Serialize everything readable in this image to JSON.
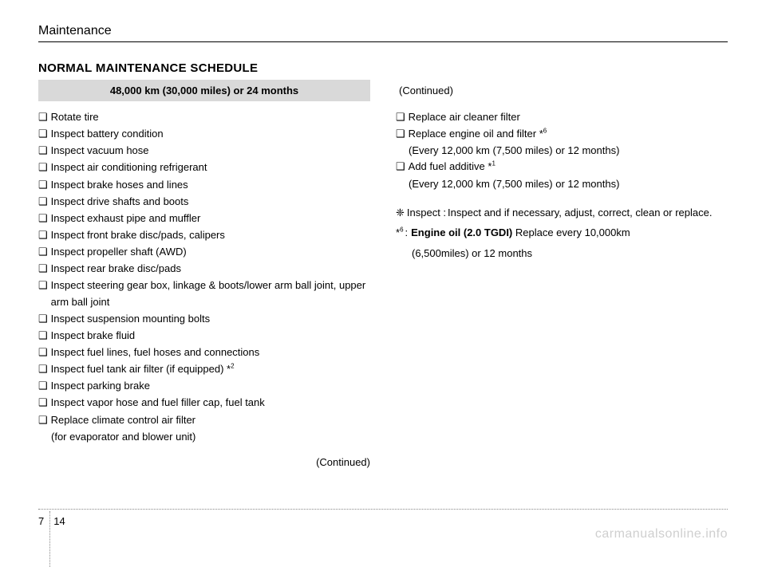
{
  "header": {
    "section": "Maintenance"
  },
  "heading": "NORMAL MAINTENANCE SCHEDULE",
  "left": {
    "interval": "48,000 km (30,000 miles) or 24 months",
    "items": [
      {
        "text": "Rotate tire"
      },
      {
        "text": "Inspect battery condition"
      },
      {
        "text": "Inspect vacuum hose"
      },
      {
        "text": "Inspect air conditioning refrigerant"
      },
      {
        "text": "Inspect brake hoses and lines"
      },
      {
        "text": "Inspect drive shafts and boots"
      },
      {
        "text": "Inspect exhaust pipe and muffler"
      },
      {
        "text": "Inspect front brake disc/pads, calipers"
      },
      {
        "text": "Inspect propeller shaft (AWD)"
      },
      {
        "text": "Inspect rear brake disc/pads"
      },
      {
        "text": "Inspect steering gear box, linkage & boots/lower arm ball joint, upper arm ball joint"
      },
      {
        "text": "Inspect suspension mounting bolts"
      },
      {
        "text": "Inspect brake fluid"
      },
      {
        "text": "Inspect fuel lines, fuel hoses and connections"
      },
      {
        "text": "Inspect fuel tank air filter (if equipped) *",
        "sup": "2"
      },
      {
        "text": "Inspect parking brake"
      },
      {
        "text": "Inspect vapor hose and fuel filler cap, fuel tank"
      },
      {
        "text": "Replace climate control air filter",
        "sub": "(for evaporator and blower unit)"
      }
    ],
    "continued": "(Continued)"
  },
  "right": {
    "continued_top": "(Continued)",
    "items": [
      {
        "text": "Replace air cleaner filter"
      },
      {
        "text": "Replace engine oil and filter *",
        "sup": "6",
        "sub": "(Every 12,000 km (7,500 miles) or 12 months)"
      },
      {
        "text": "Add fuel additive *",
        "sup": "1",
        "sub": "(Every 12,000 km (7,500 miles) or 12 months)"
      }
    ],
    "note_inspect": {
      "symbol": "❈",
      "label": "Inspect :",
      "desc": "Inspect and if necessary, adjust, correct, clean or replace."
    },
    "note6": {
      "symbol": "*",
      "sup": "6",
      "colon": ":",
      "bold": "Engine oil (2.0 TGDI)",
      "rest": " Replace every 10,000km",
      "sub": "(6,500miles) or 12 months"
    }
  },
  "footer": {
    "chapter": "7",
    "page": "14"
  },
  "watermark": "carmanualsonline.info"
}
